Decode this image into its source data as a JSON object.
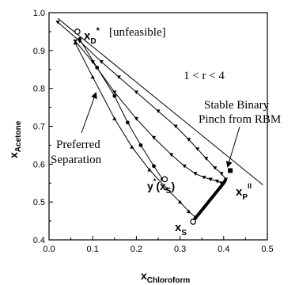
{
  "chart_data": {
    "type": "line",
    "title": "",
    "xlabel": {
      "main": "x",
      "sub": "Chloroform"
    },
    "ylabel": {
      "main": "x",
      "sub": "Acetone"
    },
    "xlim": [
      0.0,
      0.5
    ],
    "ylim": [
      0.4,
      1.0
    ],
    "xticks": [
      "0.0",
      "0.1",
      "0.2",
      "0.3",
      "0.4",
      "0.5"
    ],
    "yticks": [
      "0.4",
      "0.5",
      "0.6",
      "0.7",
      "0.8",
      "0.9",
      "1.0"
    ],
    "grid": false,
    "legend": "none",
    "pinch_line": {
      "x": [
        0.02,
        0.49
      ],
      "y": [
        0.985,
        0.545
      ]
    },
    "series": [
      {
        "marker": "triangle-down",
        "x": [
          0.02,
          0.07,
          0.12,
          0.16,
          0.2,
          0.25,
          0.29,
          0.32,
          0.34,
          0.36,
          0.38,
          0.395,
          0.405
        ],
        "y": [
          0.975,
          0.925,
          0.87,
          0.83,
          0.79,
          0.74,
          0.7,
          0.665,
          0.64,
          0.615,
          0.59,
          0.575,
          0.56
        ]
      },
      {
        "marker": "triangle-down",
        "x": [
          0.06,
          0.1,
          0.15,
          0.2,
          0.24,
          0.28,
          0.31,
          0.335,
          0.355,
          0.37,
          0.385,
          0.395
        ],
        "y": [
          0.925,
          0.87,
          0.79,
          0.72,
          0.67,
          0.625,
          0.595,
          0.575,
          0.565,
          0.56,
          0.555,
          0.55
        ]
      },
      {
        "marker": "triangle-up",
        "x": [
          0.06,
          0.1,
          0.15,
          0.19,
          0.23,
          0.27,
          0.3,
          0.32,
          0.335
        ],
        "y": [
          0.92,
          0.83,
          0.72,
          0.645,
          0.585,
          0.535,
          0.5,
          0.475,
          0.46
        ]
      },
      {
        "marker": "open-circle",
        "x": [
          0.07,
          0.11,
          0.15,
          0.18,
          0.21,
          0.24,
          0.26
        ],
        "y": [
          0.93,
          0.855,
          0.78,
          0.71,
          0.65,
          0.595,
          0.56
        ]
      }
    ],
    "thick_segment": {
      "x": [
        0.33,
        0.4,
        0.405
      ],
      "y": [
        0.45,
        0.55,
        0.56
      ]
    },
    "points": {
      "xd": {
        "x": 0.065,
        "y": 0.95,
        "label_main": "x",
        "label_sub": "D",
        "label_sup": "*",
        "label_note": "[unfeasible]"
      },
      "xp": {
        "x": 0.415,
        "y": 0.583,
        "label_main": "x",
        "label_sub": "P",
        "label_sup": "II"
      },
      "xs": {
        "x": 0.33,
        "y": 0.448,
        "label_main": "x",
        "label_sub": "S"
      },
      "ystar": {
        "x": 0.265,
        "y": 0.56,
        "label_main": "y",
        "label_sup": "*",
        "label_paren": "(x",
        "label_paren_sub": "S",
        "label_close": ")"
      }
    },
    "annotations": {
      "r_range": "1 < r < 4",
      "pinch_line1": "Stable Binary",
      "pinch_line2": "Pinch from RBM",
      "sep_line1": "Preferred",
      "sep_line2": "Separation"
    }
  }
}
